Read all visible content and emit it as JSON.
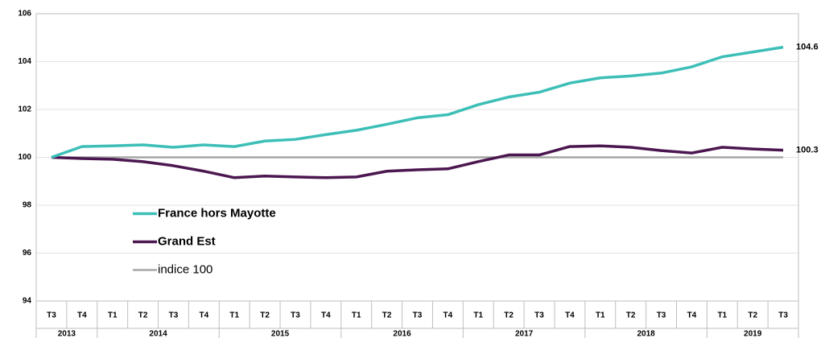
{
  "chart_data": {
    "type": "line",
    "categories": [
      "T3",
      "T4",
      "T1",
      "T2",
      "T3",
      "T4",
      "T1",
      "T2",
      "T3",
      "T4",
      "T1",
      "T2",
      "T3",
      "T4",
      "T1",
      "T2",
      "T3",
      "T4",
      "T1",
      "T2",
      "T3",
      "T4",
      "T1",
      "T2",
      "T3"
    ],
    "year_groups": [
      {
        "label": "2013",
        "span": 2
      },
      {
        "label": "2014",
        "span": 4
      },
      {
        "label": "2015",
        "span": 4
      },
      {
        "label": "2016",
        "span": 4
      },
      {
        "label": "2017",
        "span": 4
      },
      {
        "label": "2018",
        "span": 4
      },
      {
        "label": "2019",
        "span": 3
      }
    ],
    "series": [
      {
        "name": "France hors Mayotte",
        "color": "#3dbfb8",
        "end_label": true,
        "values": [
          100,
          100.45,
          100.48,
          100.52,
          100.42,
          100.52,
          100.45,
          100.68,
          100.75,
          100.95,
          101.13,
          101.38,
          101.65,
          101.78,
          102.2,
          102.52,
          102.72,
          103.1,
          103.32,
          103.4,
          103.52,
          103.78,
          104.2,
          104.4,
          104.6
        ]
      },
      {
        "name": "Grand Est",
        "color": "#4b1750",
        "end_label": true,
        "values": [
          100,
          99.95,
          99.92,
          99.82,
          99.65,
          99.42,
          99.15,
          99.22,
          99.18,
          99.15,
          99.18,
          99.42,
          99.48,
          99.52,
          99.82,
          100.1,
          100.1,
          100.45,
          100.48,
          100.42,
          100.28,
          100.18,
          100.42,
          100.35,
          100.3
        ]
      },
      {
        "name": "indice 100",
        "color": "#a6a6a6",
        "end_label": false,
        "values": [
          100,
          100,
          100,
          100,
          100,
          100,
          100,
          100,
          100,
          100,
          100,
          100,
          100,
          100,
          100,
          100,
          100,
          100,
          100,
          100,
          100,
          100,
          100,
          100,
          100
        ]
      }
    ],
    "ylim": [
      94,
      106
    ],
    "yticks": [
      94,
      96,
      98,
      100,
      102,
      104,
      106
    ],
    "grid": true,
    "legend": "center-left"
  }
}
